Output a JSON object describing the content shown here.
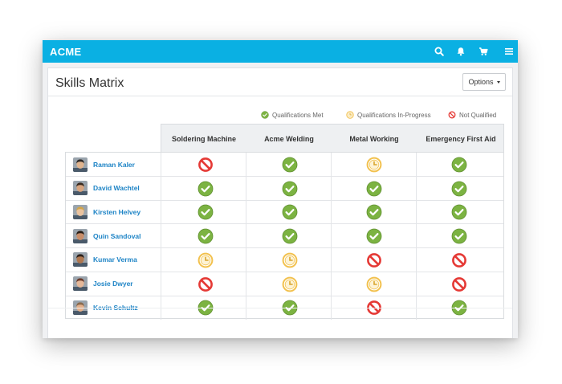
{
  "app": {
    "brand": "ACME",
    "nav_icons": [
      "search-icon",
      "bell-icon",
      "cart-icon",
      "menu-icon"
    ]
  },
  "page": {
    "title": "Skills Matrix",
    "options_label": "Options"
  },
  "legend": {
    "met": "Qualifications Met",
    "in_progress": "Qualifications In-Progress",
    "not_qualified": "Not Qualified"
  },
  "colors": {
    "topbar": "#0ab0e3",
    "met": "#7cb342",
    "in_progress": "#f2c14e",
    "not_qualified": "#e53935",
    "link": "#1e84c6"
  },
  "columns": [
    "Soldering Machine",
    "Acme Welding",
    "Metal Working",
    "Emergency First Aid"
  ],
  "rows": [
    {
      "name": "Raman Kaler",
      "skills": [
        "not_qualified",
        "met",
        "in_progress",
        "met"
      ]
    },
    {
      "name": "David Wachtel",
      "skills": [
        "met",
        "met",
        "met",
        "met"
      ]
    },
    {
      "name": "Kirsten Helvey",
      "skills": [
        "met",
        "met",
        "met",
        "met"
      ]
    },
    {
      "name": "Quin Sandoval",
      "skills": [
        "met",
        "met",
        "met",
        "met"
      ]
    },
    {
      "name": "Kumar Verma",
      "skills": [
        "in_progress",
        "in_progress",
        "not_qualified",
        "not_qualified"
      ]
    },
    {
      "name": "Josie Dwyer",
      "skills": [
        "not_qualified",
        "in_progress",
        "in_progress",
        "not_qualified"
      ]
    },
    {
      "name": "Kevin Schultz",
      "skills": [
        "met",
        "met",
        "not_qualified",
        "met"
      ]
    }
  ]
}
